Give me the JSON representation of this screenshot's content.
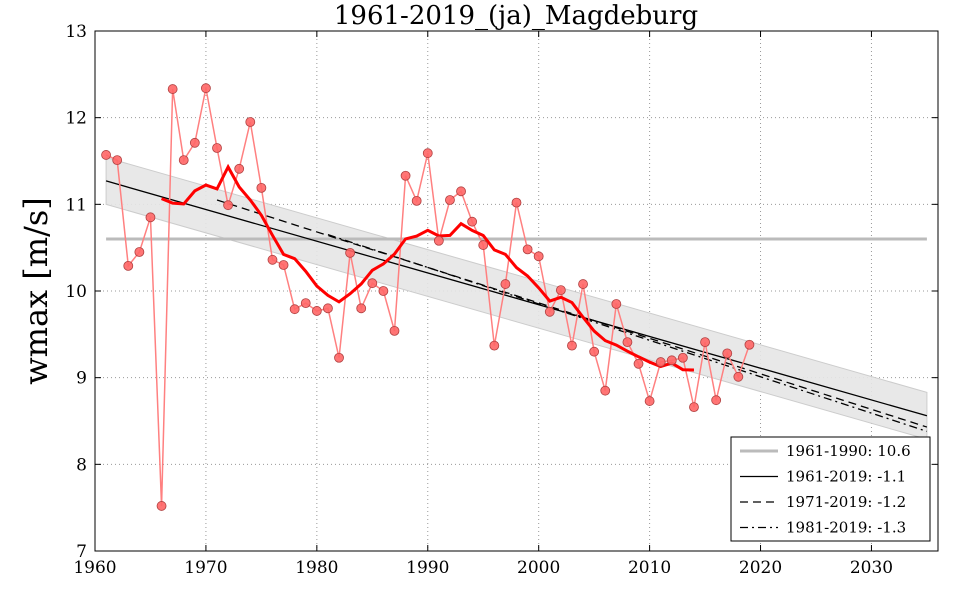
{
  "chart_data": {
    "type": "line",
    "title": "1961-2019_(ja)_Magdeburg",
    "xlabel": "",
    "ylabel": "wmax [m/s]",
    "xlim": [
      1960,
      2036
    ],
    "ylim": [
      7,
      13
    ],
    "xticks": [
      1960,
      1970,
      1980,
      1990,
      2000,
      2010,
      2020,
      2030
    ],
    "yticks": [
      7,
      8,
      9,
      10,
      11,
      12,
      13
    ],
    "grid": true,
    "legend_position": "bottom-right",
    "x": [
      1961,
      1962,
      1963,
      1964,
      1965,
      1966,
      1967,
      1968,
      1969,
      1970,
      1971,
      1972,
      1973,
      1974,
      1975,
      1976,
      1977,
      1978,
      1979,
      1980,
      1981,
      1982,
      1983,
      1984,
      1985,
      1986,
      1987,
      1988,
      1989,
      1990,
      1991,
      1992,
      1993,
      1994,
      1995,
      1996,
      1997,
      1998,
      1999,
      2000,
      2001,
      2002,
      2003,
      2004,
      2005,
      2006,
      2007,
      2008,
      2009,
      2010,
      2011,
      2012,
      2013,
      2014,
      2015,
      2016,
      2017,
      2018,
      2019
    ],
    "values": [
      11.57,
      11.51,
      10.29,
      10.45,
      10.85,
      7.52,
      12.33,
      11.51,
      11.71,
      12.34,
      11.65,
      10.99,
      11.41,
      11.95,
      11.19,
      10.36,
      10.3,
      9.79,
      9.86,
      9.77,
      9.8,
      9.23,
      10.44,
      9.8,
      10.09,
      10.0,
      9.54,
      11.33,
      11.04,
      11.59,
      10.58,
      11.05,
      11.15,
      10.8,
      10.53,
      9.37,
      10.08,
      11.02,
      10.48,
      10.4,
      9.76,
      10.01,
      9.37,
      10.08,
      9.3,
      8.85,
      9.85,
      9.41,
      9.16,
      8.73,
      9.18,
      9.2,
      9.23,
      8.66,
      9.41,
      8.74,
      9.28,
      9.01,
      9.38
    ],
    "moving_average_window": 11,
    "reference": {
      "label": "1961-1990: 10.6",
      "value": 10.6,
      "color": "#bbbbbb"
    },
    "trends": [
      {
        "label": "1961-2019: -1.1",
        "start": 1961,
        "end": 2035,
        "y_start": 11.27,
        "y_end": 8.56,
        "style": "solid"
      },
      {
        "label": "1971-2019: -1.2",
        "start": 1971,
        "end": 2035,
        "y_start": 11.05,
        "y_end": 8.43,
        "style": "dashed"
      },
      {
        "label": "1981-2019: -1.3",
        "start": 1981,
        "end": 2035,
        "y_start": 10.65,
        "y_end": 8.38,
        "style": "dashdot"
      }
    ],
    "confidence_band_halfwidth": 0.27,
    "colors": {
      "points": "#ff6666",
      "line": "#ff8080",
      "moving_average": "#ff0000",
      "band": "#e6e6e6"
    }
  }
}
